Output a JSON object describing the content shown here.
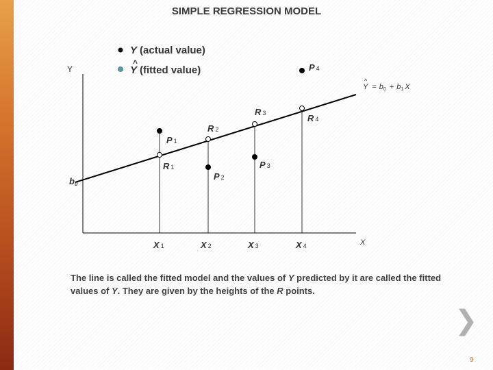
{
  "slide": {
    "title": "SIMPLE REGRESSION MODEL",
    "page_number": "9",
    "next_icon": "chevron-right-icon",
    "accent_color": "#d4712a"
  },
  "legend": {
    "actual_symbol": "Y",
    "actual_label": "(actual value)",
    "fitted_symbol": "Y",
    "fitted_label": "(fitted value)",
    "actual_color": "#000000",
    "fitted_color": "#4aa3b5"
  },
  "axes": {
    "y_label": "Y",
    "x_label": "X",
    "intercept_label": "b",
    "intercept_sub": "0"
  },
  "equation": {
    "lhs": "Y",
    "eq": "=",
    "b0": "b",
    "b0_sub": "0",
    "plus": "+",
    "b1": "b",
    "b1_sub": "1",
    "x": "X"
  },
  "x_ticks": [
    {
      "main": "X",
      "sub": "1"
    },
    {
      "main": "X",
      "sub": "2"
    },
    {
      "main": "X",
      "sub": "3"
    },
    {
      "main": "X",
      "sub": "4"
    }
  ],
  "actual_points": [
    {
      "main": "P",
      "sub": "1"
    },
    {
      "main": "P",
      "sub": "2"
    },
    {
      "main": "P",
      "sub": "3"
    },
    {
      "main": "P",
      "sub": "4"
    }
  ],
  "fitted_points": [
    {
      "main": "R",
      "sub": "1"
    },
    {
      "main": "R",
      "sub": "2"
    },
    {
      "main": "R",
      "sub": "3"
    },
    {
      "main": "R",
      "sub": "4"
    }
  ],
  "caption": {
    "part1": "The line is called the fitted model and the values of ",
    "y1": "Y",
    "part2": " predicted by it are called the fitted values of ",
    "y2": "Y",
    "part3": ".  They are given by the heights of the ",
    "r": "R",
    "part4": " points."
  }
}
